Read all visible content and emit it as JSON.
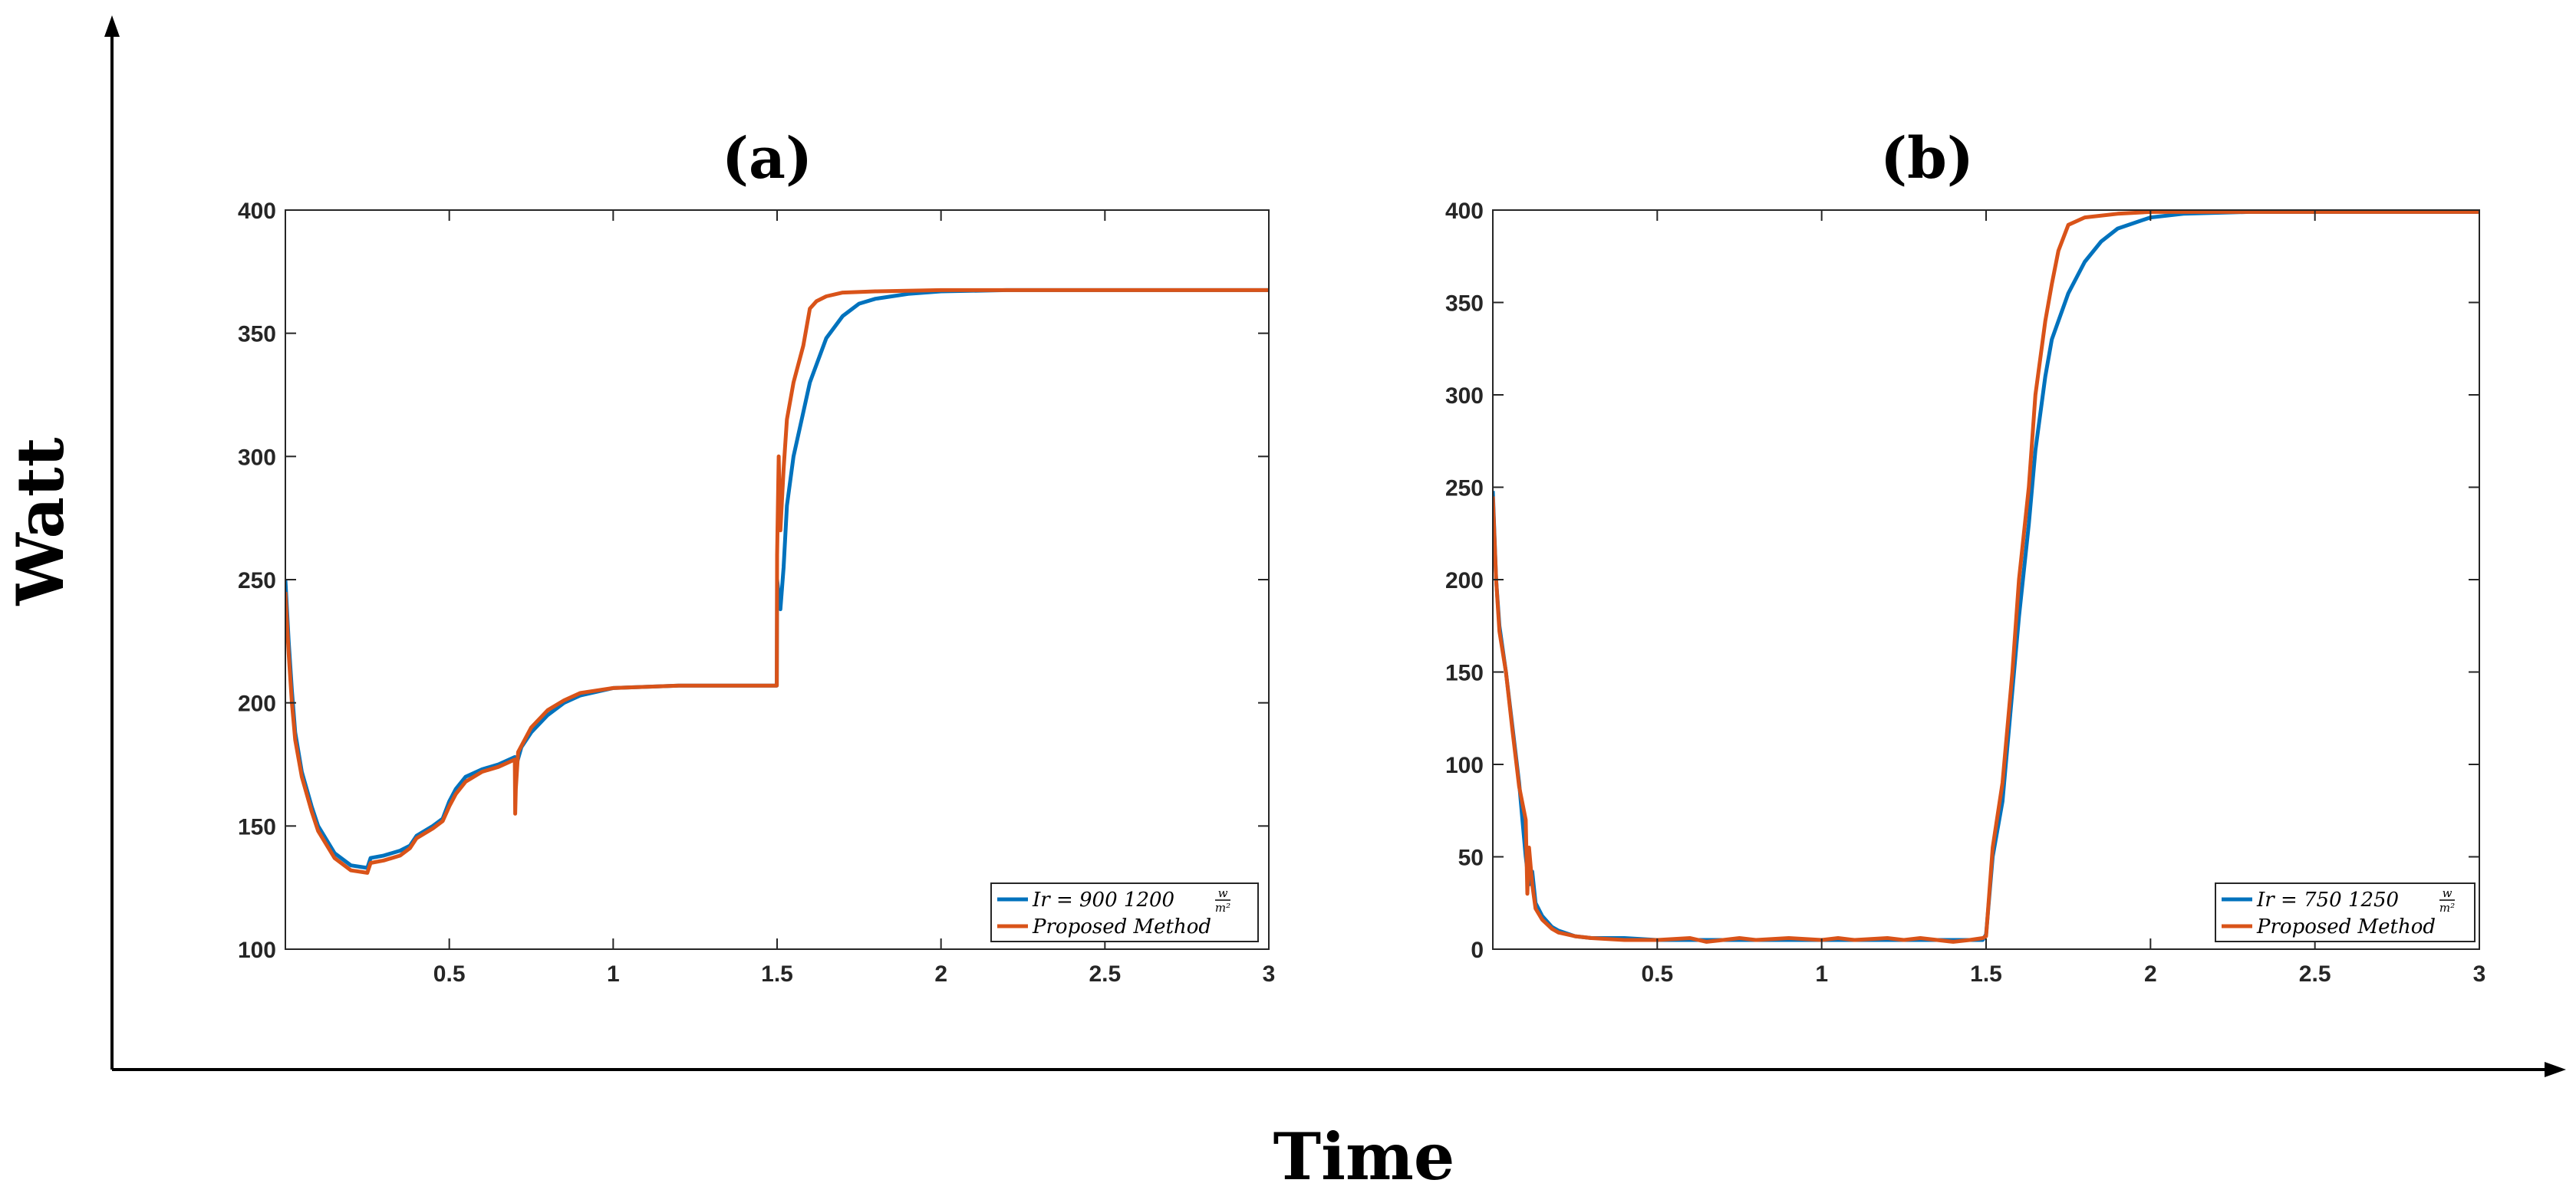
{
  "figure": {
    "ylabel": "Watt",
    "xlabel": "Time",
    "colors": {
      "series1": "#0072BD",
      "series2": "#D95319",
      "axis": "#262626",
      "grid": "#000000"
    }
  },
  "chart_data": [
    {
      "type": "line",
      "title": "(a)",
      "xlim": [
        0,
        3
      ],
      "ylim": [
        100,
        400
      ],
      "xticks": [
        0.5,
        1,
        1.5,
        2,
        2.5,
        3
      ],
      "xtick_labels": [
        "0.5",
        "1",
        "1.5",
        "2",
        "2.5",
        "3"
      ],
      "yticks": [
        100,
        150,
        200,
        250,
        300,
        350,
        400
      ],
      "ytick_labels": [
        "100",
        "150",
        "200",
        "250",
        "300",
        "350",
        "400"
      ],
      "legend_position": "bottom-right",
      "series": [
        {
          "name": "Ir = 900 1200 w/m²",
          "legend_main": "Ir = 900 1200",
          "legend_num": "w",
          "legend_den": "m²",
          "color": "#0072BD",
          "x": [
            0.0,
            0.01,
            0.02,
            0.03,
            0.05,
            0.08,
            0.1,
            0.15,
            0.2,
            0.25,
            0.26,
            0.3,
            0.35,
            0.38,
            0.4,
            0.45,
            0.48,
            0.5,
            0.52,
            0.55,
            0.6,
            0.65,
            0.7,
            0.705,
            0.72,
            0.75,
            0.8,
            0.85,
            0.9,
            1.0,
            1.2,
            1.4,
            1.499,
            1.5,
            1.51,
            1.52,
            1.53,
            1.55,
            1.58,
            1.6,
            1.65,
            1.7,
            1.75,
            1.8,
            1.9,
            2.0,
            2.2,
            2.5,
            3.0
          ],
          "y": [
            250,
            225,
            205,
            188,
            172,
            158,
            150,
            139,
            134,
            133,
            137,
            138,
            140,
            142,
            146,
            150,
            153,
            160,
            165,
            170,
            173,
            175,
            178,
            175,
            182,
            188,
            195,
            200,
            203,
            206,
            207,
            207,
            207,
            250,
            238,
            255,
            280,
            300,
            318,
            330,
            348,
            357,
            362,
            364,
            366,
            367,
            367.5,
            367.5,
            367.5
          ]
        },
        {
          "name": "Proposed Method",
          "legend_main": "Proposed Method",
          "color": "#D95319",
          "x": [
            0.0,
            0.01,
            0.02,
            0.03,
            0.05,
            0.08,
            0.1,
            0.15,
            0.2,
            0.25,
            0.26,
            0.3,
            0.35,
            0.38,
            0.4,
            0.45,
            0.48,
            0.5,
            0.52,
            0.55,
            0.6,
            0.65,
            0.7,
            0.701,
            0.703,
            0.71,
            0.75,
            0.8,
            0.85,
            0.9,
            1.0,
            1.2,
            1.4,
            1.499,
            1.5,
            1.505,
            1.51,
            1.52,
            1.53,
            1.55,
            1.58,
            1.6,
            1.62,
            1.65,
            1.7,
            1.8,
            2.0,
            2.5,
            3.0
          ],
          "y": [
            245,
            220,
            200,
            185,
            170,
            156,
            148,
            137,
            132,
            131,
            135,
            136,
            138,
            141,
            145,
            149,
            152,
            158,
            163,
            168,
            172,
            174,
            177,
            155,
            165,
            180,
            190,
            197,
            201,
            204,
            206,
            207,
            207,
            207,
            260,
            300,
            270,
            295,
            315,
            330,
            345,
            360,
            363,
            365,
            366.5,
            367,
            367.5,
            367.5,
            367.5
          ]
        }
      ]
    },
    {
      "type": "line",
      "title": "(b)",
      "xlim": [
        0,
        3
      ],
      "ylim": [
        0,
        400
      ],
      "xticks": [
        0.5,
        1,
        1.5,
        2,
        2.5,
        3
      ],
      "xtick_labels": [
        "0.5",
        "1",
        "1.5",
        "2",
        "2.5",
        "3"
      ],
      "yticks": [
        0,
        50,
        100,
        150,
        200,
        250,
        300,
        350,
        400
      ],
      "ytick_labels": [
        "0",
        "50",
        "100",
        "150",
        "200",
        "250",
        "300",
        "350",
        "400"
      ],
      "legend_position": "bottom-right",
      "series": [
        {
          "name": "Ir = 750 1250 w/m²",
          "legend_main": "Ir = 750 1250",
          "legend_num": "w",
          "legend_den": "m²",
          "color": "#0072BD",
          "x": [
            0.0,
            0.01,
            0.02,
            0.04,
            0.06,
            0.08,
            0.1,
            0.11,
            0.12,
            0.13,
            0.15,
            0.18,
            0.2,
            0.25,
            0.3,
            0.4,
            0.5,
            0.6,
            0.7,
            0.8,
            0.9,
            1.0,
            1.1,
            1.2,
            1.3,
            1.4,
            1.45,
            1.49,
            1.5,
            1.52,
            1.55,
            1.58,
            1.6,
            1.63,
            1.65,
            1.68,
            1.7,
            1.75,
            1.8,
            1.85,
            1.9,
            2.0,
            2.1,
            2.3,
            2.5,
            3.0
          ],
          "y": [
            248,
            200,
            175,
            150,
            120,
            90,
            50,
            35,
            42,
            25,
            18,
            12,
            10,
            7,
            6,
            6,
            5,
            5,
            5,
            5,
            5,
            5,
            5,
            5,
            5,
            5,
            5,
            5,
            8,
            50,
            80,
            140,
            180,
            230,
            270,
            310,
            330,
            355,
            372,
            383,
            390,
            396,
            398,
            399,
            399,
            399
          ]
        },
        {
          "name": "Proposed Method",
          "legend_main": "Proposed Method",
          "color": "#D95319",
          "x": [
            0.0,
            0.01,
            0.02,
            0.04,
            0.06,
            0.08,
            0.1,
            0.105,
            0.11,
            0.12,
            0.13,
            0.15,
            0.18,
            0.2,
            0.25,
            0.3,
            0.4,
            0.5,
            0.6,
            0.65,
            0.7,
            0.75,
            0.8,
            0.9,
            1.0,
            1.05,
            1.1,
            1.2,
            1.25,
            1.3,
            1.4,
            1.45,
            1.49,
            1.5,
            1.52,
            1.55,
            1.58,
            1.6,
            1.63,
            1.65,
            1.68,
            1.7,
            1.72,
            1.75,
            1.8,
            1.9,
            2.0,
            2.5,
            3.0
          ],
          "y": [
            245,
            200,
            172,
            150,
            118,
            88,
            70,
            30,
            55,
            35,
            22,
            16,
            11,
            9,
            7,
            6,
            5,
            5,
            6,
            4,
            5,
            6,
            5,
            6,
            5,
            6,
            5,
            6,
            5,
            6,
            4,
            5,
            6,
            7,
            55,
            90,
            150,
            200,
            250,
            300,
            340,
            360,
            378,
            392,
            396,
            398,
            399,
            399,
            399
          ]
        }
      ]
    }
  ]
}
